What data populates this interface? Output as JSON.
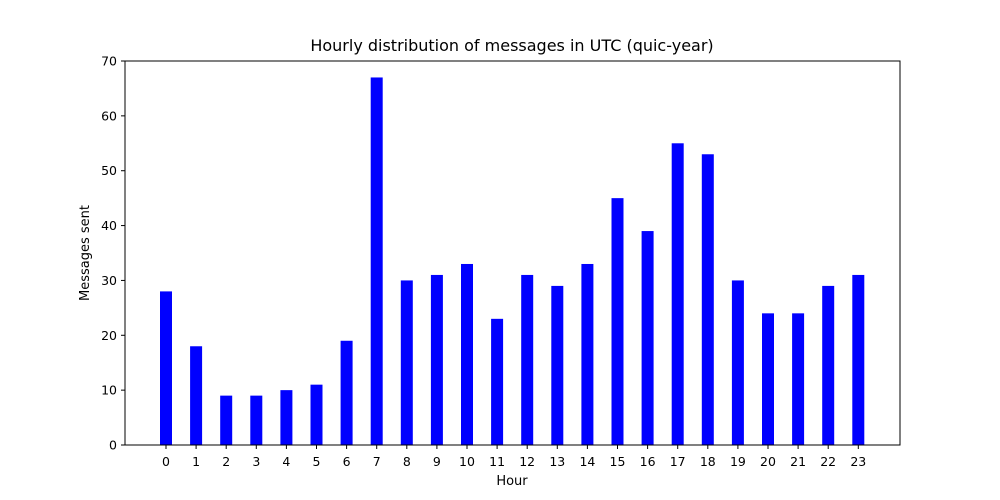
{
  "chart_data": {
    "type": "bar",
    "title": "Hourly distribution of messages in UTC (quic-year)",
    "xlabel": "Hour",
    "ylabel": "Messages sent",
    "categories": [
      "0",
      "1",
      "2",
      "3",
      "4",
      "5",
      "6",
      "7",
      "8",
      "9",
      "10",
      "11",
      "12",
      "13",
      "14",
      "15",
      "16",
      "17",
      "18",
      "19",
      "20",
      "21",
      "22",
      "23"
    ],
    "values": [
      28,
      18,
      9,
      9,
      10,
      11,
      19,
      67,
      30,
      31,
      33,
      23,
      31,
      29,
      33,
      45,
      39,
      55,
      53,
      30,
      24,
      24,
      29,
      31
    ],
    "ylim": [
      0,
      70
    ],
    "yticks": [
      0,
      10,
      20,
      30,
      40,
      50,
      60,
      70
    ],
    "bar_color": "#0000ff",
    "grid": false,
    "legend": "none"
  }
}
